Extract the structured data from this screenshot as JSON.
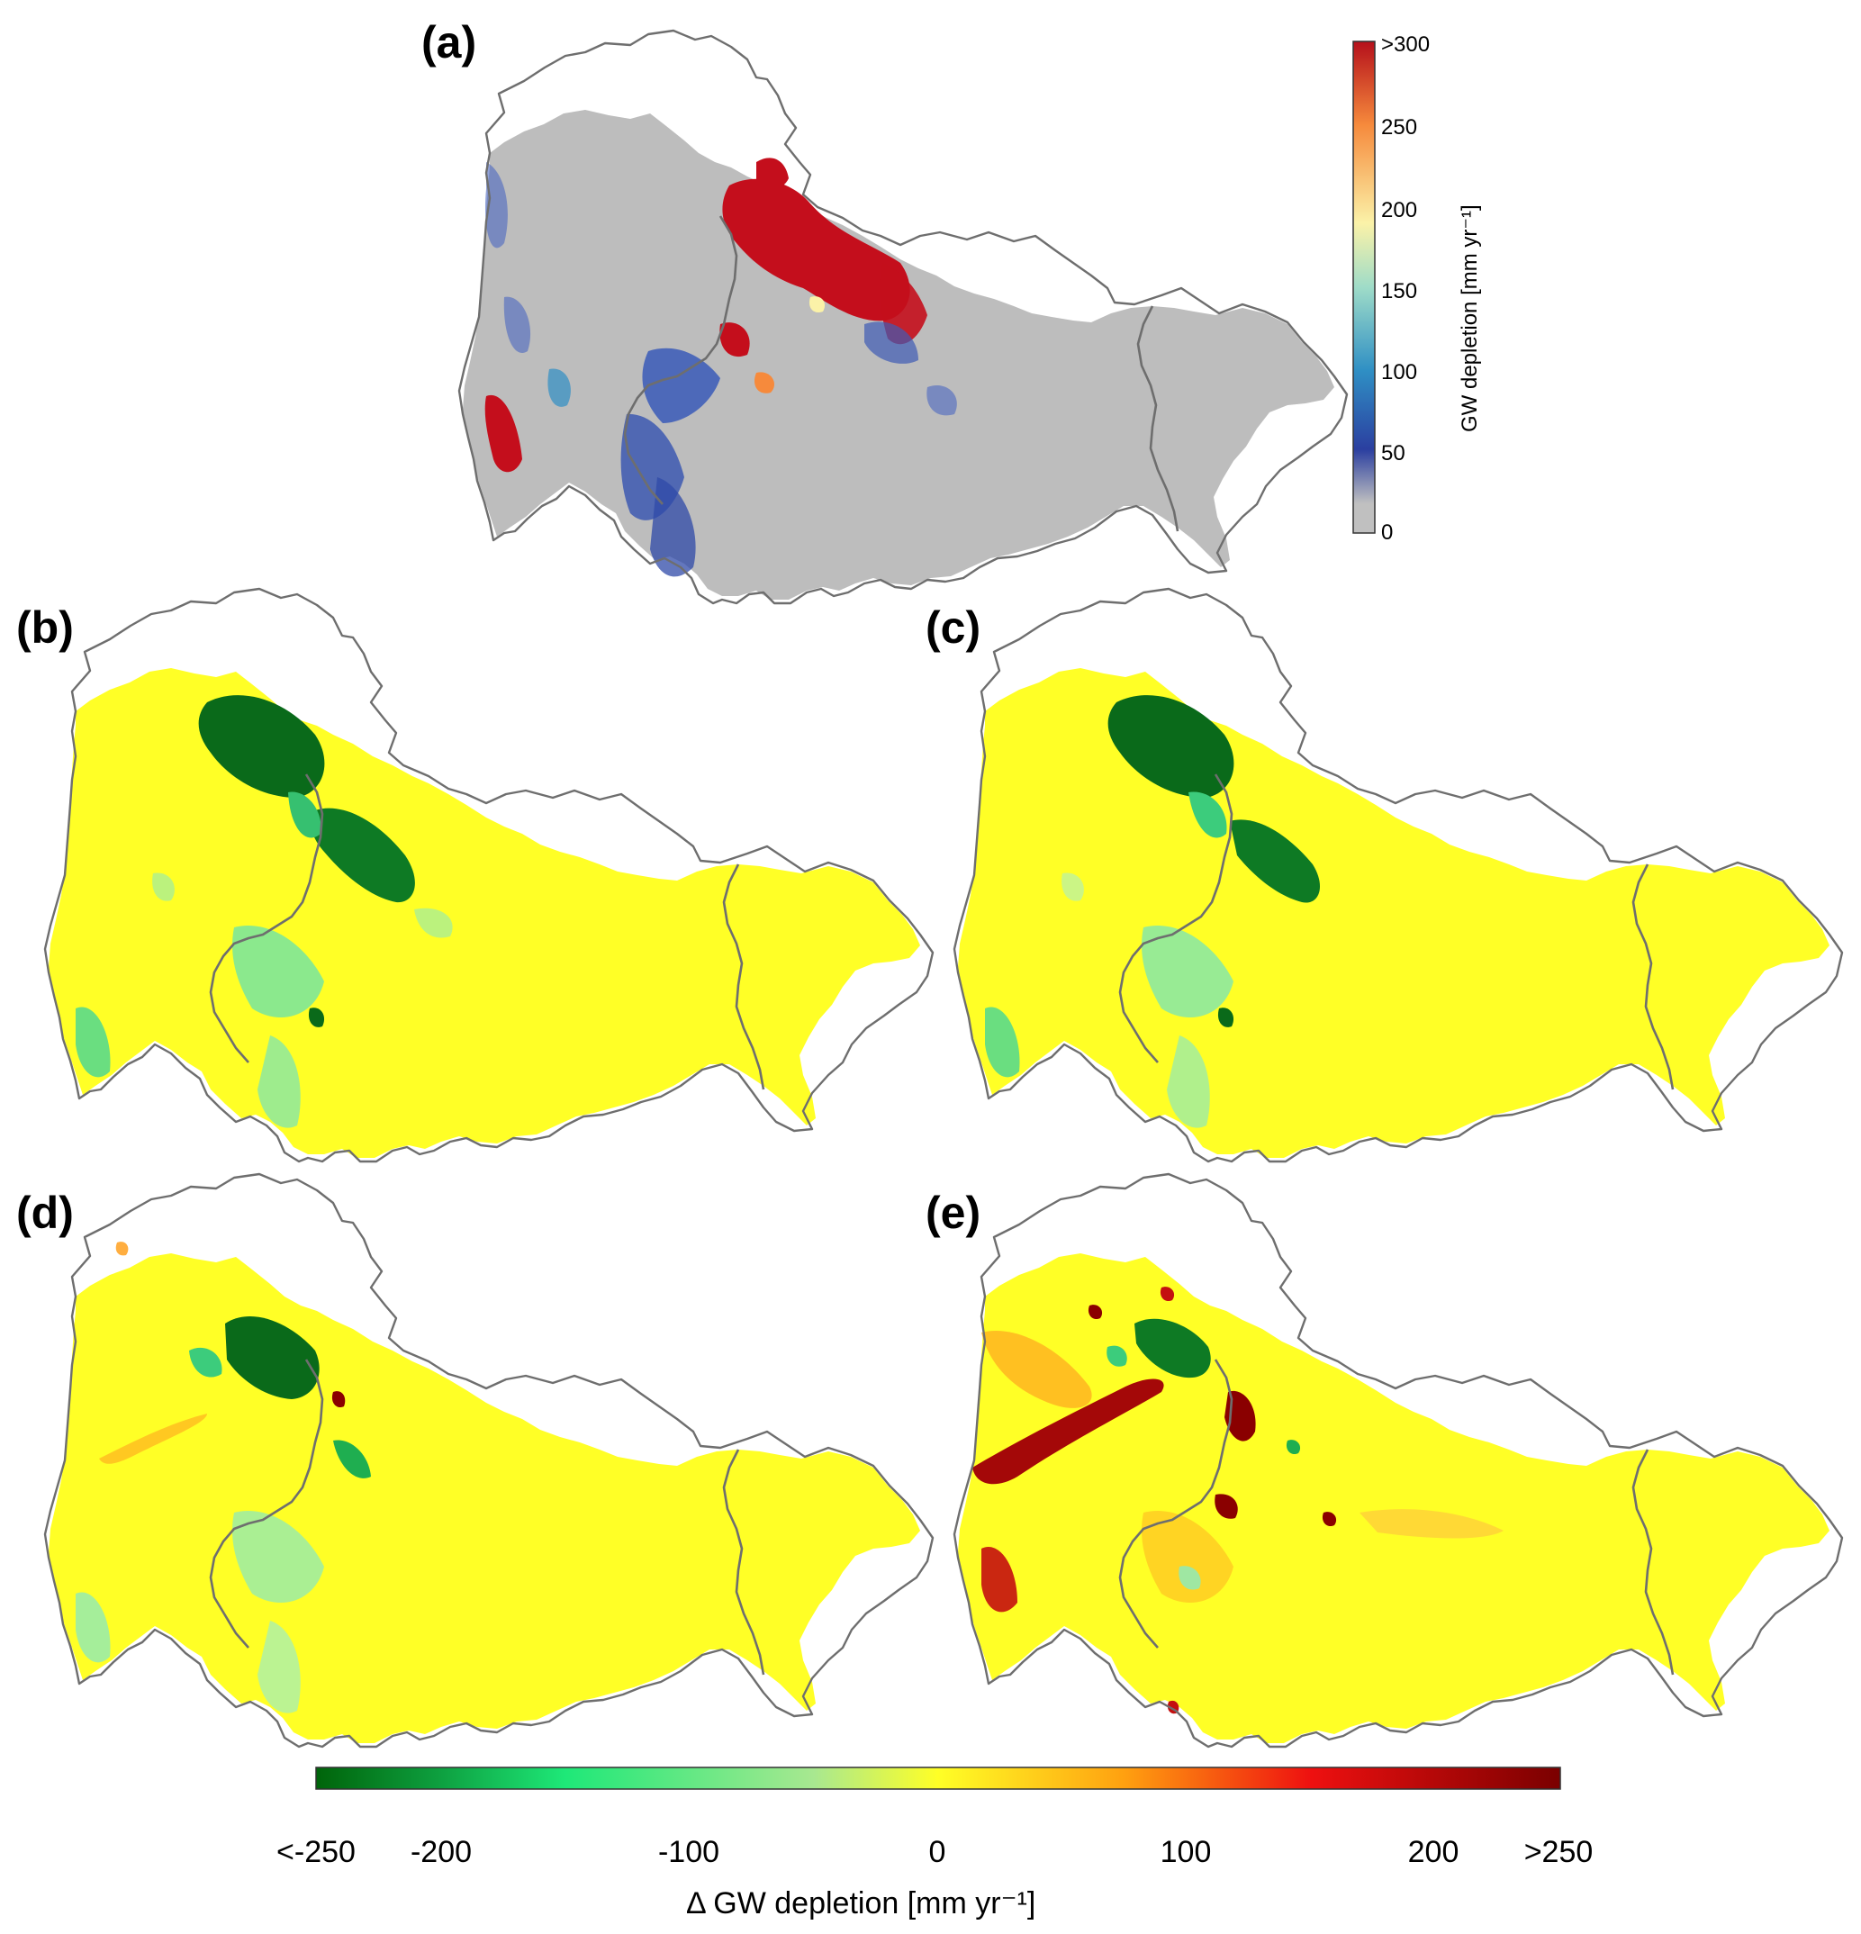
{
  "panels": {
    "a": {
      "label": "(a)"
    },
    "b": {
      "label": "(b)"
    },
    "c": {
      "label": "(c)"
    },
    "d": {
      "label": "(d)"
    },
    "e": {
      "label": "(e)"
    }
  },
  "legend_top": {
    "title": "GW depletion [mm yr⁻¹]",
    "ticks": [
      "0",
      "50",
      "100",
      "150",
      "200",
      "250",
      ">300"
    ],
    "colors": [
      "#c0c0c0",
      "#2b3fa0",
      "#2f8fc4",
      "#9fdcc8",
      "#fbf2a8",
      "#f68a3c",
      "#b5101b"
    ]
  },
  "legend_bottom": {
    "title": "Δ GW depletion [mm yr⁻¹]",
    "ticks": [
      "<-250",
      "-200",
      "-100",
      "0",
      "100",
      "200",
      ">250"
    ],
    "colors": [
      "#00640a",
      "#1ee878",
      "#a8e890",
      "#ffff26",
      "#ffa010",
      "#ee1010",
      "#7a0000"
    ]
  },
  "map_colors": {
    "background_gray": "#bdbdbd",
    "yellow": "#ffff26",
    "dark_green": "#0a6a1a",
    "light_green": "#5ee6a0",
    "red": "#c40e1c",
    "blue": "#3552b0",
    "orange": "#ff9a10",
    "dark_red": "#8a0000"
  }
}
